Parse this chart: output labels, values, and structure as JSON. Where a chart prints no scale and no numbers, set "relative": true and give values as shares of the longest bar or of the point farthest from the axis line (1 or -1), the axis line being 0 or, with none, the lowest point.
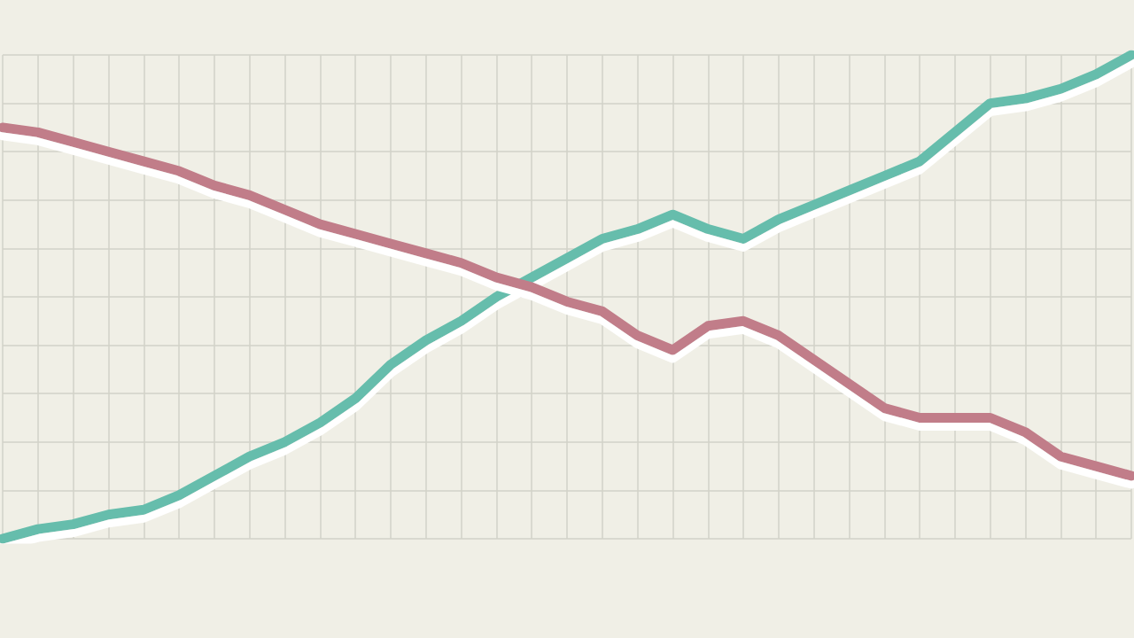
{
  "chart_data": {
    "type": "line",
    "relative": true,
    "grid": true,
    "line_style": "solid",
    "categories": [
      null,
      null,
      null,
      null,
      null,
      null,
      null,
      null,
      null,
      null,
      null,
      null,
      null,
      null,
      null,
      null,
      null,
      null,
      null,
      null,
      null,
      null,
      null,
      null,
      null,
      null,
      null,
      null,
      null,
      null,
      null,
      null,
      null
    ],
    "series": [
      {
        "color": "#66bdac",
        "values": [
          0,
          0.02,
          0.03,
          0.05,
          0.06,
          0.09,
          0.13,
          0.17,
          0.2,
          0.24,
          0.29,
          0.36,
          0.41,
          0.45,
          0.5,
          0.54,
          0.58,
          0.62,
          0.64,
          0.67,
          0.64,
          0.62,
          0.66,
          0.69,
          0.72,
          0.75,
          0.78,
          0.84,
          0.9,
          0.91,
          0.93,
          0.96,
          1
        ]
      },
      {
        "color": "#c17d89",
        "values": [
          0.85,
          0.84,
          0.82,
          0.8,
          0.78,
          0.76,
          0.73,
          0.71,
          0.68,
          0.65,
          0.63,
          0.61,
          0.59,
          0.57,
          0.54,
          0.52,
          0.49,
          0.47,
          0.42,
          0.39,
          0.44,
          0.45,
          0.42,
          0.37,
          0.32,
          0.27,
          0.25,
          0.25,
          0.25,
          0.22,
          0.17,
          0.15,
          0.13
        ]
      }
    ]
  }
}
